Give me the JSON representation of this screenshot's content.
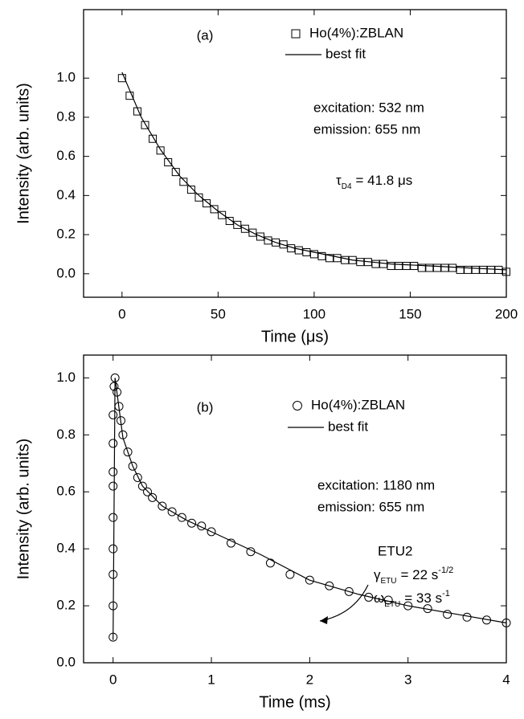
{
  "chart_data": [
    {
      "type": "scatter",
      "panel_label": "(a)",
      "xlabel": "Time (μs)",
      "ylabel": "Intensity (arb. units)",
      "xlim": [
        -20,
        200
      ],
      "ylim": [
        -0.12,
        1.35
      ],
      "xticks": [
        0,
        50,
        100,
        150,
        200
      ],
      "yticks": [
        {
          "value": 0,
          "label": "0.0"
        },
        0.2,
        0.4,
        0.6,
        0.8,
        {
          "value": 1,
          "label": "1.0"
        }
      ],
      "series": [
        {
          "name": "Ho(4%):ZBLAN",
          "marker": "square",
          "color": "#000000",
          "x": [
            0,
            4,
            8,
            12,
            16,
            20,
            24,
            28,
            32,
            36,
            40,
            44,
            48,
            52,
            56,
            60,
            64,
            68,
            72,
            76,
            80,
            84,
            88,
            92,
            96,
            100,
            104,
            108,
            112,
            116,
            120,
            124,
            128,
            132,
            136,
            140,
            144,
            148,
            152,
            156,
            160,
            164,
            168,
            172,
            176,
            180,
            184,
            188,
            192,
            196,
            200
          ],
          "values": [
            1.0,
            0.91,
            0.83,
            0.76,
            0.69,
            0.63,
            0.57,
            0.52,
            0.47,
            0.43,
            0.39,
            0.36,
            0.33,
            0.3,
            0.27,
            0.25,
            0.23,
            0.21,
            0.19,
            0.17,
            0.16,
            0.15,
            0.13,
            0.12,
            0.11,
            0.1,
            0.09,
            0.08,
            0.08,
            0.07,
            0.07,
            0.06,
            0.06,
            0.05,
            0.05,
            0.04,
            0.04,
            0.04,
            0.04,
            0.03,
            0.03,
            0.03,
            0.03,
            0.03,
            0.02,
            0.02,
            0.02,
            0.02,
            0.02,
            0.02,
            0.01
          ]
        },
        {
          "name": "best fit",
          "marker": "line",
          "color": "#000000",
          "x": [
            0,
            10,
            20,
            30,
            40,
            50,
            60,
            70,
            80,
            90,
            100,
            110,
            120,
            130,
            140,
            150,
            160,
            170,
            180,
            190,
            200
          ],
          "values": [
            1.03,
            0.8,
            0.635,
            0.5,
            0.4,
            0.32,
            0.25,
            0.2,
            0.16,
            0.13,
            0.11,
            0.09,
            0.07,
            0.06,
            0.05,
            0.045,
            0.04,
            0.035,
            0.03,
            0.025,
            0.02
          ]
        }
      ],
      "annotations": [
        "excitation: 532 nm",
        "emission: 655 nm"
      ],
      "parameters": [
        {
          "symbol": "τ",
          "subscript": "D4",
          "text": "= 41.8 μs"
        }
      ]
    },
    {
      "type": "scatter",
      "panel_label": "(b)",
      "xlabel": "Time (ms)",
      "ylabel": "Intensity (arb. units)",
      "xlim": [
        -0.3,
        4
      ],
      "ylim": [
        0,
        1.08
      ],
      "xticks": [
        0,
        1,
        2,
        3,
        4
      ],
      "yticks": [
        {
          "value": 0,
          "label": "0.0"
        },
        0.2,
        0.4,
        0.6,
        0.8,
        {
          "value": 1,
          "label": "1.0"
        }
      ],
      "series": [
        {
          "name": "Ho(4%):ZBLAN",
          "marker": "circle",
          "color": "#000000",
          "x": [
            0,
            0,
            0,
            0,
            0,
            0,
            0,
            0,
            0,
            0.01,
            0.02,
            0.04,
            0.06,
            0.08,
            0.1,
            0.15,
            0.2,
            0.25,
            0.3,
            0.35,
            0.4,
            0.5,
            0.6,
            0.7,
            0.8,
            0.9,
            1.0,
            1.2,
            1.4,
            1.6,
            1.8,
            2.0,
            2.2,
            2.4,
            2.6,
            2.8,
            3.0,
            3.2,
            3.4,
            3.6,
            3.8,
            4.0
          ],
          "values": [
            0.09,
            0.2,
            0.31,
            0.4,
            0.51,
            0.62,
            0.67,
            0.77,
            0.87,
            0.97,
            1.0,
            0.95,
            0.9,
            0.85,
            0.8,
            0.74,
            0.69,
            0.65,
            0.62,
            0.6,
            0.58,
            0.55,
            0.53,
            0.51,
            0.49,
            0.48,
            0.46,
            0.42,
            0.39,
            0.35,
            0.31,
            0.29,
            0.27,
            0.25,
            0.23,
            0.22,
            0.2,
            0.19,
            0.17,
            0.16,
            0.15,
            0.14
          ]
        },
        {
          "name": "best fit",
          "marker": "line",
          "color": "#000000",
          "x": [
            0,
            0.02,
            0.1,
            0.2,
            0.3,
            0.5,
            0.75,
            1,
            1.5,
            2,
            2.5,
            3,
            3.5,
            4
          ],
          "values": [
            0.08,
            1.0,
            0.79,
            0.69,
            0.62,
            0.55,
            0.5,
            0.46,
            0.38,
            0.29,
            0.24,
            0.2,
            0.17,
            0.14
          ]
        }
      ],
      "annotations": [
        "excitation: 1180 nm",
        "emission: 655 nm",
        "ETU2"
      ],
      "parameters": [
        {
          "symbol": "γ",
          "subscript": "ETU",
          "text": "= 22 s",
          "superscript": "-1/2"
        },
        {
          "symbol": "ω",
          "subscript": "ETU",
          "text": "= 33 s",
          "superscript": "-1"
        }
      ]
    }
  ]
}
